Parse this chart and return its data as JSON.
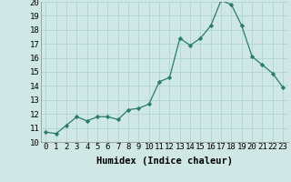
{
  "title": "",
  "xlabel": "Humidex (Indice chaleur)",
  "x": [
    0,
    1,
    2,
    3,
    4,
    5,
    6,
    7,
    8,
    9,
    10,
    11,
    12,
    13,
    14,
    15,
    16,
    17,
    18,
    19,
    20,
    21,
    22,
    23
  ],
  "y": [
    10.7,
    10.6,
    11.2,
    11.8,
    11.5,
    11.8,
    11.8,
    11.6,
    12.3,
    12.4,
    12.7,
    14.3,
    14.6,
    17.4,
    16.9,
    17.4,
    18.3,
    20.1,
    19.8,
    18.3,
    16.1,
    15.5,
    14.9,
    13.9
  ],
  "line_color": "#2a7b6e",
  "marker_color": "#2a7b6e",
  "bg_color": "#cfe8e5",
  "grid_color": "#b0d4d0",
  "ylim": [
    10,
    20
  ],
  "xlim_min": -0.5,
  "xlim_max": 23.5,
  "yticks": [
    10,
    11,
    12,
    13,
    14,
    15,
    16,
    17,
    18,
    19,
    20
  ],
  "xticks": [
    0,
    1,
    2,
    3,
    4,
    5,
    6,
    7,
    8,
    9,
    10,
    11,
    12,
    13,
    14,
    15,
    16,
    17,
    18,
    19,
    20,
    21,
    22,
    23
  ],
  "tick_fontsize": 6.5,
  "xlabel_fontsize": 7.5
}
